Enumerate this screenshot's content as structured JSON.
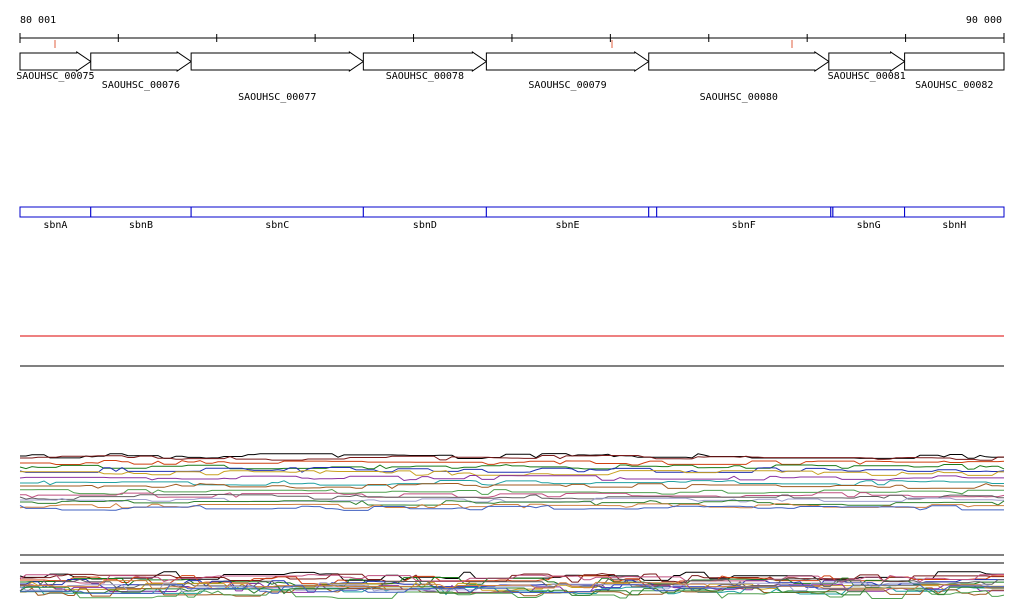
{
  "ruler": {
    "start_label": "80 001",
    "end_label": "90 000",
    "start": 80001,
    "end": 90000,
    "tick_step": 1000
  },
  "genes": [
    {
      "label": "SAOUHSC_00075",
      "start": 80001,
      "end": 80720,
      "label_row": 0
    },
    {
      "label": "SAOUHSC_00076",
      "start": 80720,
      "end": 81740,
      "label_row": 1
    },
    {
      "label": "SAOUHSC_00077",
      "start": 81740,
      "end": 83490,
      "label_row": 2
    },
    {
      "label": "SAOUHSC_00078",
      "start": 83490,
      "end": 84740,
      "label_row": 0
    },
    {
      "label": "SAOUHSC_00079",
      "start": 84740,
      "end": 86390,
      "label_row": 1
    },
    {
      "label": "SAOUHSC_00080",
      "start": 86390,
      "end": 88220,
      "label_row": 2
    },
    {
      "label": "SAOUHSC_00081",
      "start": 88220,
      "end": 88990,
      "label_row": 0
    },
    {
      "label": "SAOUHSC_00082",
      "start": 88990,
      "end": 90000,
      "label_row": 1
    }
  ],
  "annotations": [
    {
      "label": "sbnA",
      "start": 80001,
      "end": 80720
    },
    {
      "label": "sbnB",
      "start": 80720,
      "end": 81740
    },
    {
      "label": "sbnC",
      "start": 81740,
      "end": 83490
    },
    {
      "label": "sbnD",
      "start": 83490,
      "end": 84740
    },
    {
      "label": "sbnE",
      "start": 84740,
      "end": 86390
    },
    {
      "label": "sbnF",
      "start": 86470,
      "end": 88240
    },
    {
      "label": "sbnG",
      "start": 88260,
      "end": 88990
    },
    {
      "label": "sbnH",
      "start": 88990,
      "end": 90000
    }
  ],
  "colors": {
    "gene_stroke": "#000000",
    "annotation_stroke": "#0000cc",
    "red_track": "#dd0000",
    "tick_mark": "#f0b0a0"
  },
  "coverage_colors": [
    "#000000",
    "#7a1a1a",
    "#d04010",
    "#1a7a1a",
    "#2030b0",
    "#c8a020",
    "#8a30a0",
    "#20a0a0",
    "#a05a20",
    "#50a050",
    "#c05080",
    "#606060",
    "#a0a0d0",
    "#308030",
    "#d08040",
    "#4060c0"
  ]
}
